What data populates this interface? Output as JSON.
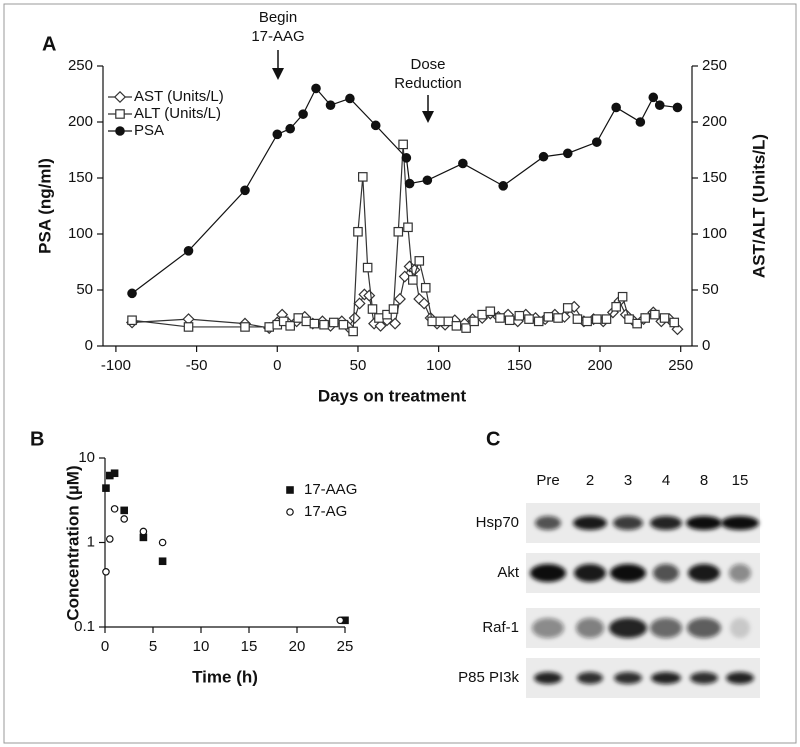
{
  "chart_data": [
    {
      "type": "line",
      "label": "A",
      "x_label": "Days on treatment",
      "y_label": "PSA (ng/ml)",
      "y2_label": "AST/ALT (Units/L)",
      "annotations": [
        [
          "Begin",
          "17-AAG"
        ],
        [
          "Dose",
          "Reduction"
        ]
      ],
      "xlim": [
        -108,
        257
      ],
      "xticks": [
        -100,
        -50,
        0,
        50,
        100,
        150,
        200,
        250
      ],
      "ylim": [
        0,
        250
      ],
      "yticks": [
        0,
        50,
        100,
        150,
        200,
        250
      ],
      "y2lim": [
        0,
        250
      ],
      "y2ticks": [
        0,
        50,
        100,
        150,
        200,
        250
      ],
      "legend": "upper left",
      "series": [
        {
          "name": "AST (Units/L)",
          "color": "#333333",
          "marker": "diamond",
          "filled": false,
          "axis": "y2",
          "x": [
            -90,
            -55,
            -20,
            -5,
            0,
            3,
            7,
            12,
            17,
            22,
            28,
            33,
            40,
            44,
            48,
            51,
            54,
            57,
            60,
            64,
            68,
            73,
            76,
            79,
            82,
            85,
            88,
            91,
            95,
            99,
            104,
            110,
            116,
            121,
            127,
            132,
            137,
            143,
            149,
            154,
            160,
            166,
            172,
            178,
            184,
            190,
            196,
            202,
            208,
            212,
            216,
            221,
            227,
            233,
            238,
            243,
            248
          ],
          "values": [
            21,
            24,
            20,
            16,
            21,
            28,
            20,
            22,
            26,
            20,
            22,
            18,
            22,
            17,
            25,
            38,
            46,
            45,
            20,
            18,
            23,
            20,
            42,
            62,
            71,
            68,
            42,
            38,
            25,
            20,
            19,
            23,
            20,
            24,
            25,
            29,
            26,
            28,
            22,
            28,
            25,
            24,
            28,
            26,
            35,
            22,
            24,
            22,
            30,
            40,
            28,
            22,
            24,
            30,
            22,
            24,
            15
          ]
        },
        {
          "name": "ALT (Units/L)",
          "color": "#333333",
          "marker": "square",
          "filled": false,
          "axis": "y2",
          "x": [
            -90,
            -55,
            -20,
            -5,
            0,
            4,
            8,
            13,
            18,
            23,
            29,
            35,
            41,
            47,
            50,
            53,
            56,
            59,
            63,
            68,
            72,
            75,
            78,
            81,
            84,
            88,
            92,
            96,
            101,
            106,
            111,
            117,
            122,
            127,
            132,
            138,
            144,
            150,
            156,
            162,
            168,
            174,
            180,
            186,
            192,
            198,
            204,
            210,
            214,
            218,
            223,
            228,
            234,
            240,
            246
          ],
          "values": [
            23,
            17,
            17,
            17,
            19,
            22,
            18,
            25,
            22,
            20,
            19,
            21,
            19,
            13,
            102,
            151,
            70,
            33,
            25,
            28,
            33,
            102,
            180,
            106,
            59,
            76,
            52,
            22,
            22,
            22,
            18,
            16,
            22,
            28,
            31,
            25,
            23,
            27,
            24,
            22,
            26,
            25,
            34,
            24,
            22,
            24,
            24,
            35,
            44,
            24,
            20,
            25,
            28,
            25,
            21
          ]
        },
        {
          "name": "PSA",
          "color": "#111111",
          "marker": "circle",
          "filled": true,
          "x": [
            -90,
            -55,
            -20,
            0,
            8,
            16,
            24,
            33,
            45,
            61,
            80,
            82,
            93,
            115,
            140,
            165,
            180,
            198,
            210,
            225,
            233,
            237,
            248
          ],
          "values": [
            47,
            85,
            139,
            189,
            194,
            207,
            230,
            215,
            221,
            197,
            168,
            145,
            148,
            163,
            143,
            169,
            172,
            182,
            213,
            200,
            222,
            215,
            213
          ]
        }
      ]
    },
    {
      "type": "scatter",
      "label": "B",
      "x_label": "Time (h)",
      "y_label": "Concentration (µM)",
      "xlim": [
        0,
        25
      ],
      "xticks": [
        0,
        5,
        10,
        15,
        20,
        25
      ],
      "ylim": [
        0.1,
        10
      ],
      "yticks": [
        0.1,
        1,
        10
      ],
      "log_y": true,
      "legend": "upper right",
      "series": [
        {
          "name": "17-AAG",
          "color": "#111111",
          "marker": "square",
          "filled": true,
          "x": [
            0.1,
            0.5,
            1,
            2,
            4,
            6,
            25
          ],
          "values": [
            4.4,
            6.2,
            6.6,
            2.4,
            1.15,
            0.6,
            0.12
          ]
        },
        {
          "name": "17-AG",
          "color": "#111111",
          "marker": "circle",
          "filled": false,
          "x": [
            0.1,
            0.5,
            1,
            2,
            4,
            6,
            24.5
          ],
          "values": [
            0.45,
            1.1,
            2.5,
            1.9,
            1.35,
            1.0,
            0.12
          ]
        }
      ]
    }
  ],
  "blot": {
    "label": "C",
    "lanes": [
      "Pre",
      "2",
      "3",
      "4",
      "8",
      "15"
    ],
    "rows": [
      "Hsp70",
      "Akt",
      "Raf-1",
      "P85 PI3k"
    ]
  }
}
